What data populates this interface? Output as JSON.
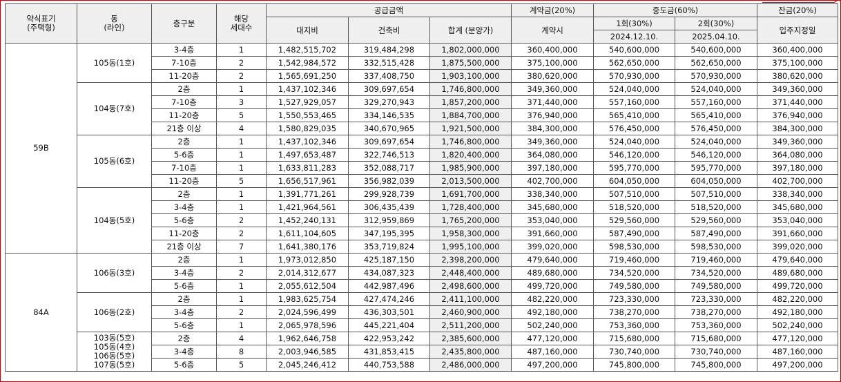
{
  "header": {
    "type_label": "약식표기\n(주택형)",
    "dong_label": "동\n(라인)",
    "floor_label": "층구분",
    "units_label": "해당\n세대수",
    "supply_label": "공급금액",
    "land_label": "대지비",
    "building_label": "건축비",
    "total_label": "합계 (분양가)",
    "deposit_label": "계약금(20%)",
    "deposit_sub_label": "계약시",
    "mid_label": "중도금(60%)",
    "mid1_label": "1회(30%)",
    "mid1_date": "2024.12.10.",
    "mid2_label": "2회(30%)",
    "mid2_date": "2025.04.10.",
    "balance_label": "잔금(20%)",
    "balance_sub_label": "입주지정일"
  },
  "groups": [
    {
      "type": "59B",
      "dongs": [
        {
          "dong": "105동(1호)",
          "rows": [
            {
              "floor": "3-4층",
              "units": "1",
              "land": "1,482,515,702",
              "building": "319,484,298",
              "total": "1,802,000,000",
              "deposit": "360,400,000",
              "mid1": "540,600,000",
              "mid2": "540,600,000",
              "balance": "360,400,000"
            },
            {
              "floor": "7-10층",
              "units": "2",
              "land": "1,542,984,572",
              "building": "332,515,428",
              "total": "1,875,500,000",
              "deposit": "375,100,000",
              "mid1": "562,650,000",
              "mid2": "562,650,000",
              "balance": "375,100,000"
            },
            {
              "floor": "11-20층",
              "units": "2",
              "land": "1,565,691,250",
              "building": "337,408,750",
              "total": "1,903,100,000",
              "deposit": "380,620,000",
              "mid1": "570,930,000",
              "mid2": "570,930,000",
              "balance": "380,620,000"
            }
          ]
        },
        {
          "dong": "104동(7호)",
          "rows": [
            {
              "floor": "2층",
              "units": "1",
              "land": "1,437,102,346",
              "building": "309,697,654",
              "total": "1,746,800,000",
              "deposit": "349,360,000",
              "mid1": "524,040,000",
              "mid2": "524,040,000",
              "balance": "349,360,000"
            },
            {
              "floor": "7-10층",
              "units": "3",
              "land": "1,527,929,057",
              "building": "329,270,943",
              "total": "1,857,200,000",
              "deposit": "371,440,000",
              "mid1": "557,160,000",
              "mid2": "557,160,000",
              "balance": "371,440,000"
            },
            {
              "floor": "11-20층",
              "units": "5",
              "land": "1,550,553,465",
              "building": "334,146,535",
              "total": "1,884,700,000",
              "deposit": "376,940,000",
              "mid1": "565,410,000",
              "mid2": "565,410,000",
              "balance": "376,940,000"
            },
            {
              "floor": "21층 이상",
              "units": "4",
              "land": "1,580,829,035",
              "building": "340,670,965",
              "total": "1,921,500,000",
              "deposit": "384,300,000",
              "mid1": "576,450,000",
              "mid2": "576,450,000",
              "balance": "384,300,000"
            }
          ]
        },
        {
          "dong": "105동(6호)",
          "rows": [
            {
              "floor": "2층",
              "units": "1",
              "land": "1,437,102,346",
              "building": "309,697,654",
              "total": "1,746,800,000",
              "deposit": "349,360,000",
              "mid1": "524,040,000",
              "mid2": "524,040,000",
              "balance": "349,360,000"
            },
            {
              "floor": "5-6층",
              "units": "1",
              "land": "1,497,653,487",
              "building": "322,746,513",
              "total": "1,820,400,000",
              "deposit": "364,080,000",
              "mid1": "546,120,000",
              "mid2": "546,120,000",
              "balance": "364,080,000"
            },
            {
              "floor": "7-10층",
              "units": "1",
              "land": "1,633,811,283",
              "building": "352,088,717",
              "total": "1,985,900,000",
              "deposit": "397,180,000",
              "mid1": "595,770,000",
              "mid2": "595,770,000",
              "balance": "397,180,000"
            },
            {
              "floor": "11-20층",
              "units": "5",
              "land": "1,656,517,961",
              "building": "356,982,039",
              "total": "2,013,500,000",
              "deposit": "402,700,000",
              "mid1": "604,050,000",
              "mid2": "604,050,000",
              "balance": "402,700,000"
            }
          ]
        },
        {
          "dong": "104동(5호)",
          "rows": [
            {
              "floor": "2층",
              "units": "1",
              "land": "1,391,771,261",
              "building": "299,928,739",
              "total": "1,691,700,000",
              "deposit": "338,340,000",
              "mid1": "507,510,000",
              "mid2": "507,510,000",
              "balance": "338,340,000"
            },
            {
              "floor": "3-4층",
              "units": "1",
              "land": "1,421,964,561",
              "building": "306,435,439",
              "total": "1,728,400,000",
              "deposit": "345,680,000",
              "mid1": "518,520,000",
              "mid2": "518,520,000",
              "balance": "345,680,000"
            },
            {
              "floor": "5-6층",
              "units": "2",
              "land": "1,452,240,131",
              "building": "312,959,869",
              "total": "1,765,200,000",
              "deposit": "353,040,000",
              "mid1": "529,560,000",
              "mid2": "529,560,000",
              "balance": "353,040,000"
            },
            {
              "floor": "11-20층",
              "units": "2",
              "land": "1,611,104,605",
              "building": "347,195,395",
              "total": "1,958,300,000",
              "deposit": "391,660,000",
              "mid1": "587,490,000",
              "mid2": "587,490,000",
              "balance": "391,660,000"
            },
            {
              "floor": "21층 이상",
              "units": "7",
              "land": "1,641,380,176",
              "building": "353,719,824",
              "total": "1,995,100,000",
              "deposit": "399,020,000",
              "mid1": "598,530,000",
              "mid2": "598,530,000",
              "balance": "399,020,000"
            }
          ]
        }
      ]
    },
    {
      "type": "84A",
      "dongs": [
        {
          "dong": "106동(3호)",
          "rows": [
            {
              "floor": "2층",
              "units": "1",
              "land": "1,973,012,850",
              "building": "425,187,150",
              "total": "2,398,200,000",
              "deposit": "479,640,000",
              "mid1": "719,460,000",
              "mid2": "719,460,000",
              "balance": "479,640,000"
            },
            {
              "floor": "3-4층",
              "units": "2",
              "land": "2,014,312,677",
              "building": "434,087,323",
              "total": "2,448,400,000",
              "deposit": "489,680,000",
              "mid1": "734,520,000",
              "mid2": "734,520,000",
              "balance": "489,680,000"
            },
            {
              "floor": "5-6층",
              "units": "1",
              "land": "2,055,612,504",
              "building": "442,987,496",
              "total": "2,498,600,000",
              "deposit": "499,720,000",
              "mid1": "749,580,000",
              "mid2": "749,580,000",
              "balance": "499,720,000"
            }
          ]
        },
        {
          "dong": "106동(2호)",
          "rows": [
            {
              "floor": "2층",
              "units": "1",
              "land": "1,983,625,754",
              "building": "427,474,246",
              "total": "2,411,100,000",
              "deposit": "482,220,000",
              "mid1": "723,330,000",
              "mid2": "723,330,000",
              "balance": "482,220,000"
            },
            {
              "floor": "3-4층",
              "units": "2",
              "land": "2,024,596,499",
              "building": "436,303,501",
              "total": "2,460,900,000",
              "deposit": "492,180,000",
              "mid1": "738,270,000",
              "mid2": "738,270,000",
              "balance": "492,180,000"
            },
            {
              "floor": "5-6층",
              "units": "1",
              "land": "2,065,978,596",
              "building": "445,221,404",
              "total": "2,511,200,000",
              "deposit": "502,240,000",
              "mid1": "753,360,000",
              "mid2": "753,360,000",
              "balance": "502,240,000"
            }
          ]
        },
        {
          "dong": "103동(5호)\n105동(4호)\n106동(5호)\n107동(5호)",
          "rows": [
            {
              "floor": "2층",
              "units": "4",
              "land": "1,962,646,758",
              "building": "422,953,242",
              "total": "2,385,600,000",
              "deposit": "477,120,000",
              "mid1": "715,680,000",
              "mid2": "715,680,000",
              "balance": "477,120,000"
            },
            {
              "floor": "3-4층",
              "units": "8",
              "land": "2,003,946,585",
              "building": "431,853,415",
              "total": "2,435,800,000",
              "deposit": "487,160,000",
              "mid1": "730,740,000",
              "mid2": "730,740,000",
              "balance": "487,160,000"
            },
            {
              "floor": "5-6층",
              "units": "5",
              "land": "2,045,246,412",
              "building": "440,753,588",
              "total": "2,486,000,000",
              "deposit": "497,200,000",
              "mid1": "745,800,000",
              "mid2": "745,800,000",
              "balance": "497,200,000"
            }
          ]
        }
      ]
    }
  ]
}
